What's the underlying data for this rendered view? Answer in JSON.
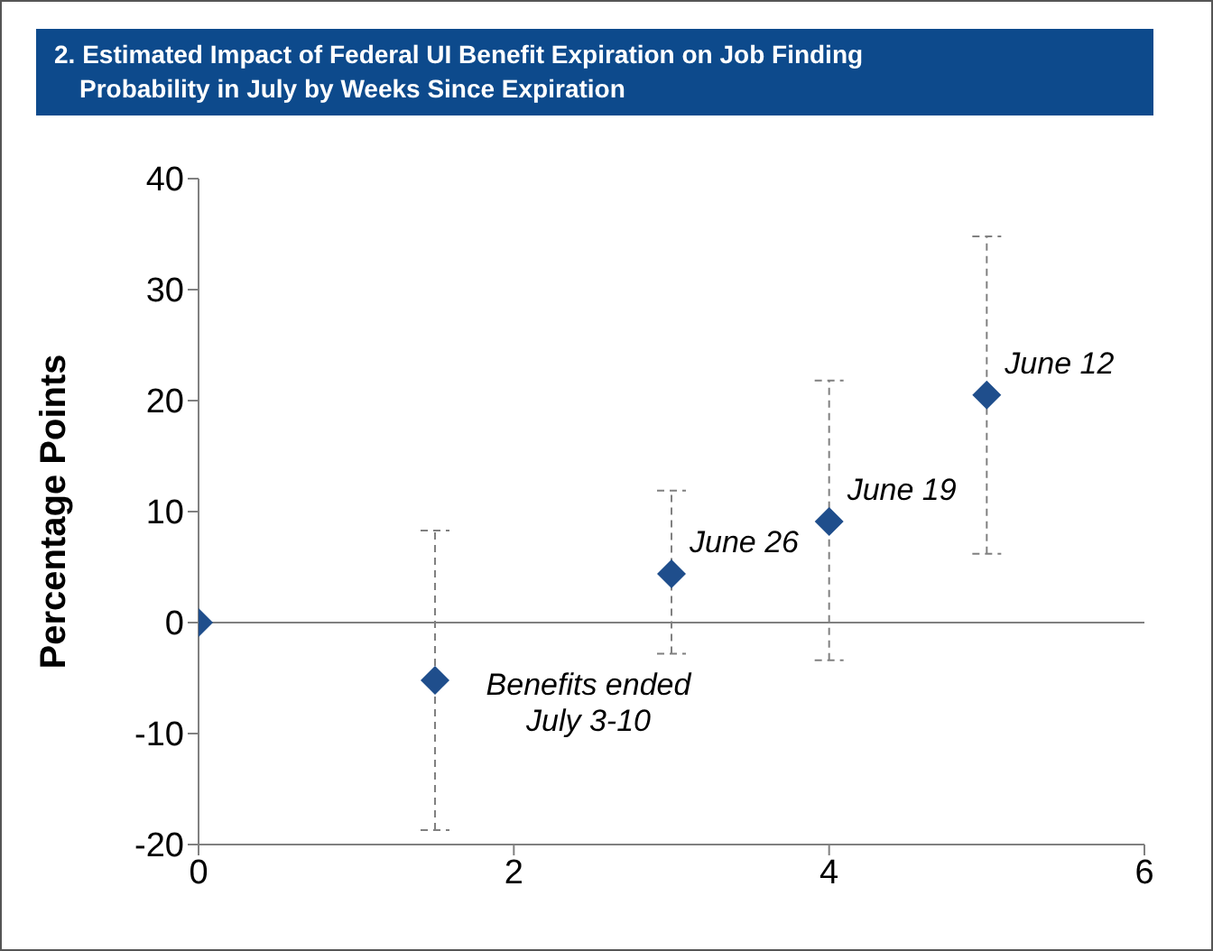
{
  "chart_data": {
    "type": "scatter",
    "title": "2. Estimated Impact of Federal UI Benefit Expiration on Job Finding Probability in July by Weeks Since Expiration",
    "ylabel": "Percentage Points",
    "x": [
      0,
      1.5,
      3,
      4,
      5
    ],
    "values": [
      0,
      -5.2,
      4.4,
      9.1,
      20.5
    ],
    "errors": [
      null,
      [
        -18.7,
        8.3
      ],
      [
        -2.8,
        11.9
      ],
      [
        -3.4,
        21.8
      ],
      [
        6.2,
        34.8
      ]
    ],
    "color": "#1f4e8c",
    "marker": "diamond",
    "xlim": [
      0,
      6
    ],
    "xticks": [
      0,
      2,
      4,
      6
    ],
    "ylim": [
      -20,
      40
    ],
    "yticks": [
      -20,
      -10,
      0,
      10,
      20,
      30,
      40
    ],
    "ref_lines": [
      {
        "axis": "y",
        "value": 0,
        "color": "#808080"
      }
    ],
    "annotations": [
      {
        "text": "Benefits ended\nJuly 3-10",
        "x": 1.5,
        "y": -5.2
      },
      {
        "text": "June 26",
        "x": 3,
        "y": 4.4
      },
      {
        "text": "June 19",
        "x": 4,
        "y": 9.1
      },
      {
        "text": "June 12",
        "x": 5,
        "y": 20.5
      }
    ],
    "grid": false,
    "legend": false
  }
}
